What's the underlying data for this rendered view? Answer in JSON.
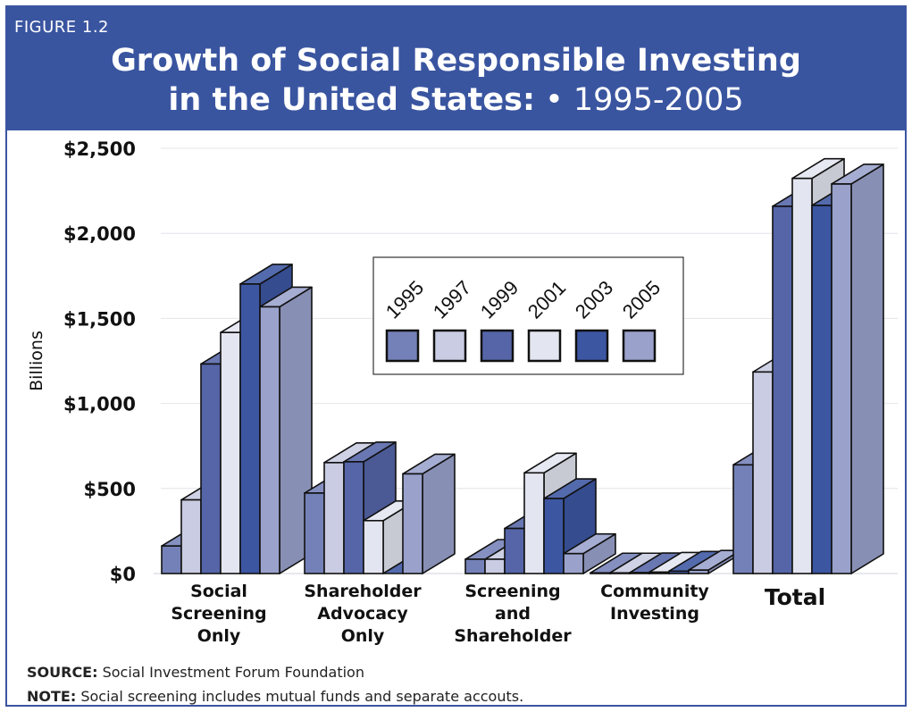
{
  "figure_label": "FIGURE 1.2",
  "title_line1": "Growth of Social Responsible Investing",
  "title_line2_bold": "in the United States:",
  "title_line2_rest": " • 1995-2005",
  "source_label": "SOURCE:",
  "source_text": " Social Investment Forum Foundation",
  "note_label": "NOTE:",
  "note_text": " Social screening includes mutual funds and separate accouts.",
  "colors": {
    "header": "#3a55a0",
    "series": [
      "#7481b8",
      "#c9cce2",
      "#5565a8",
      "#e3e5f0",
      "#3c56a2",
      "#9aa2cc"
    ]
  },
  "chart_data": {
    "type": "bar",
    "title": "Growth of Social Responsible Investing in the United States: • 1995-2005",
    "ylabel": "Billions",
    "xlabel": "",
    "ylim": [
      0,
      2500
    ],
    "yticks": [
      "$0",
      "$500",
      "$1,000",
      "$1,500",
      "$2,000",
      "$2,500"
    ],
    "ytick_values": [
      0,
      500,
      1000,
      1500,
      2000,
      2500
    ],
    "grid": true,
    "legend_position": "center",
    "categories": [
      [
        "Social",
        "Screening",
        "Only"
      ],
      [
        "Shareholder",
        "Advocacy",
        "Only"
      ],
      [
        "Screening",
        "and",
        "Shareholder"
      ],
      [
        "Community",
        "Investing"
      ],
      [
        "Total"
      ]
    ],
    "series": [
      {
        "name": "1995",
        "values": [
          162,
          473,
          84,
          4,
          639
        ]
      },
      {
        "name": "1997",
        "values": [
          433,
          652,
          84,
          4,
          1185
        ]
      },
      {
        "name": "1999",
        "values": [
          1232,
          657,
          265,
          5,
          2159
        ]
      },
      {
        "name": "2001",
        "values": [
          1417,
          311,
          592,
          8,
          2323
        ]
      },
      {
        "name": "2003",
        "values": [
          1702,
          0,
          441,
          14,
          2164
        ]
      },
      {
        "name": "2005",
        "values": [
          1568,
          586,
          117,
          20,
          2290
        ]
      }
    ]
  }
}
